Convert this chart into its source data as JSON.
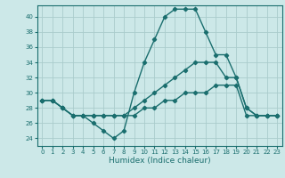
{
  "title": "",
  "xlabel": "Humidex (Indice chaleur)",
  "ylabel": "",
  "bg_color": "#cce8e8",
  "grid_color": "#aacccc",
  "line_color": "#1a6e6e",
  "xlim": [
    -0.5,
    23.5
  ],
  "ylim": [
    23,
    41.5
  ],
  "xticks": [
    0,
    1,
    2,
    3,
    4,
    5,
    6,
    7,
    8,
    9,
    10,
    11,
    12,
    13,
    14,
    15,
    16,
    17,
    18,
    19,
    20,
    21,
    22,
    23
  ],
  "yticks": [
    24,
    26,
    28,
    30,
    32,
    34,
    36,
    38,
    40
  ],
  "curve1_x": [
    0,
    1,
    2,
    3,
    4,
    5,
    6,
    7,
    8,
    9,
    10,
    11,
    12,
    13,
    14,
    15,
    16,
    17,
    18,
    19,
    20,
    21,
    22,
    23
  ],
  "curve1_y": [
    29,
    29,
    28,
    27,
    27,
    26,
    25,
    24,
    25,
    30,
    34,
    37,
    40,
    41,
    41,
    41,
    38,
    35,
    35,
    32,
    28,
    27,
    27,
    27
  ],
  "curve2_x": [
    0,
    1,
    2,
    3,
    4,
    5,
    6,
    7,
    8,
    9,
    10,
    11,
    12,
    13,
    14,
    15,
    16,
    17,
    18,
    19,
    20,
    21,
    22,
    23
  ],
  "curve2_y": [
    29,
    29,
    28,
    27,
    27,
    27,
    27,
    27,
    27,
    27,
    28,
    28,
    29,
    29,
    30,
    30,
    30,
    31,
    31,
    31,
    27,
    27,
    27,
    27
  ],
  "curve3_x": [
    0,
    1,
    2,
    3,
    4,
    5,
    6,
    7,
    8,
    9,
    10,
    11,
    12,
    13,
    14,
    15,
    16,
    17,
    18,
    19,
    20,
    21,
    22,
    23
  ],
  "curve3_y": [
    29,
    29,
    28,
    27,
    27,
    27,
    27,
    27,
    27,
    28,
    29,
    30,
    31,
    32,
    33,
    34,
    34,
    34,
    32,
    32,
    28,
    27,
    27,
    27
  ],
  "marker": "D",
  "markersize": 2.2,
  "linewidth": 1.0,
  "tick_fontsize": 5.0,
  "xlabel_fontsize": 6.5
}
